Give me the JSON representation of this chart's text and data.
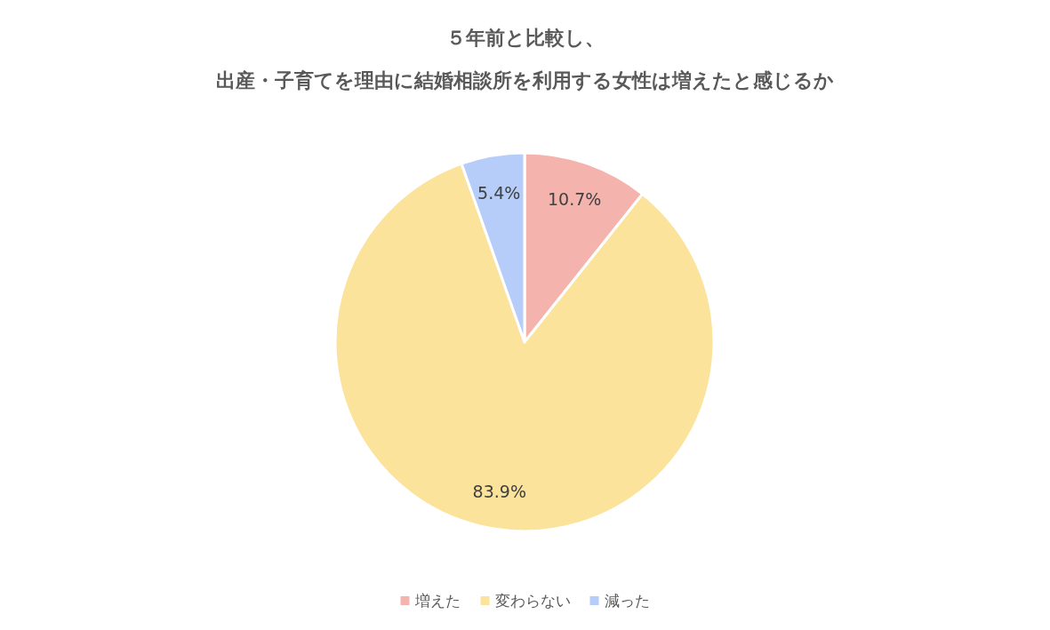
{
  "chart_data": {
    "type": "pie",
    "title": "５年前と比較し、",
    "subtitle": "出産・子育てを理由に結婚相談所を利用する女性は増えたと感じるか",
    "categories": [
      "増えた",
      "変わらない",
      "減った"
    ],
    "values": [
      10.7,
      83.9,
      5.4
    ],
    "colors": [
      "#f5b3ad",
      "#fbe39c",
      "#b5cdf8"
    ],
    "value_labels": [
      "10.7%",
      "83.9%",
      "5.4%"
    ],
    "legend": "bottom"
  }
}
